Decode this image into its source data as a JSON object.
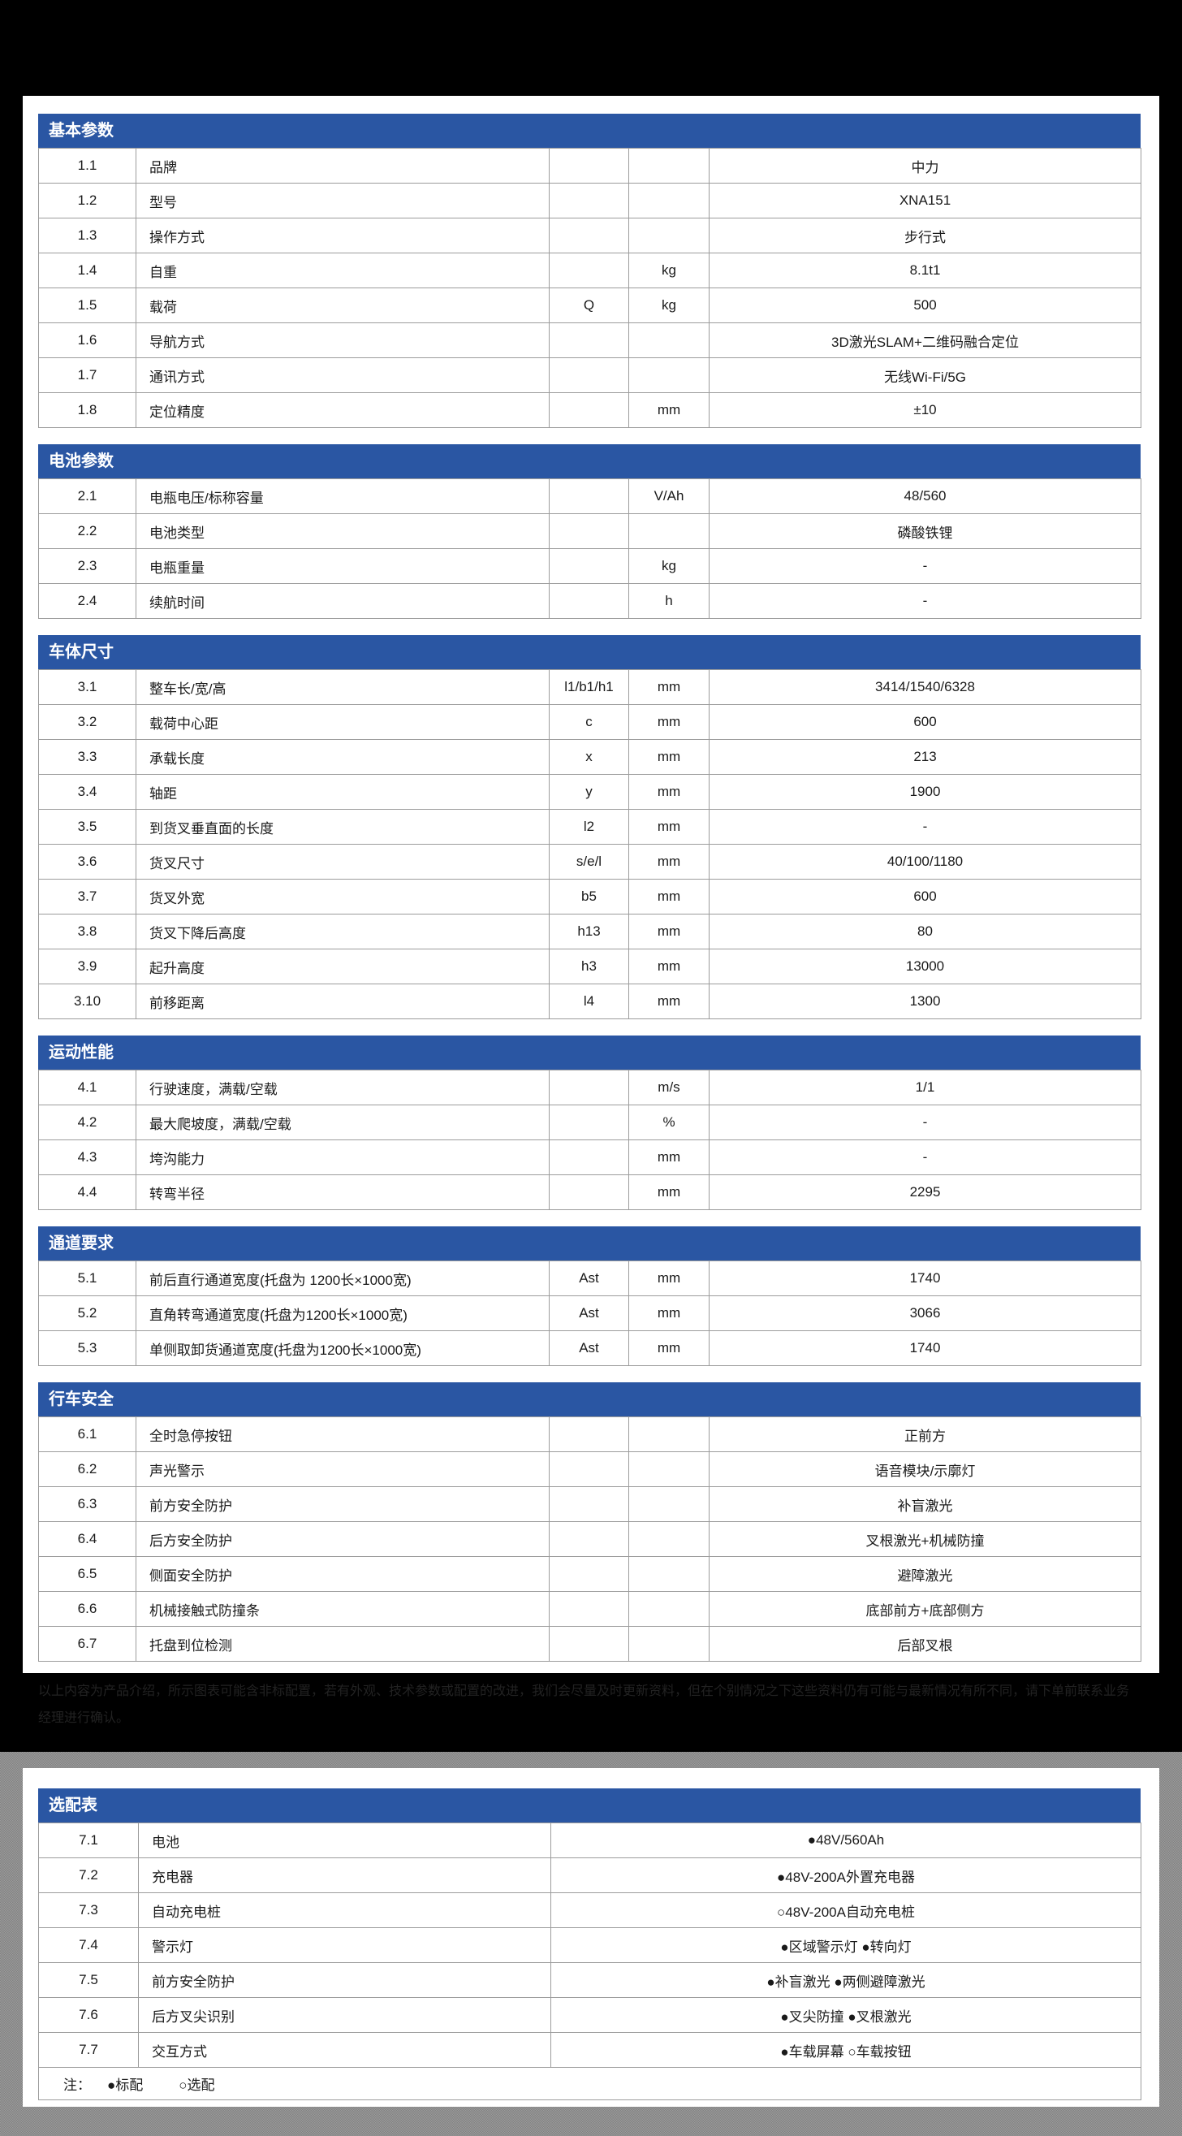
{
  "colors": {
    "header_blue": "#2A56A3",
    "border_gray": "#9C9C9C",
    "text_color": "#1A1A1A",
    "page_background": "#000000",
    "noise_gray_dark": "#828282",
    "noise_gray_light": "#9B9B9B",
    "card_white": "#FFFFFF"
  },
  "sections": [
    {
      "title": "基本参数",
      "rows": [
        {
          "no": "1.1",
          "name": "品牌",
          "symbol": "",
          "unit": "",
          "value": "中力"
        },
        {
          "no": "1.2",
          "name": "型号",
          "symbol": "",
          "unit": "",
          "value": "XNA151"
        },
        {
          "no": "1.3",
          "name": "操作方式",
          "symbol": "",
          "unit": "",
          "value": "步行式"
        },
        {
          "no": "1.4",
          "name": "自重",
          "symbol": "",
          "unit": "kg",
          "value": "8.1t1"
        },
        {
          "no": "1.5",
          "name": "载荷",
          "symbol": "Q",
          "unit": "kg",
          "value": "500"
        },
        {
          "no": "1.6",
          "name": "导航方式",
          "symbol": "",
          "unit": "",
          "value": "3D激光SLAM+二维码融合定位"
        },
        {
          "no": "1.7",
          "name": "通讯方式",
          "symbol": "",
          "unit": "",
          "value": "无线Wi-Fi/5G"
        },
        {
          "no": "1.8",
          "name": "定位精度",
          "symbol": "",
          "unit": "mm",
          "value": "±10"
        }
      ]
    },
    {
      "title": "电池参数",
      "rows": [
        {
          "no": "2.1",
          "name": "电瓶电压/标称容量",
          "symbol": "",
          "unit": "V/Ah",
          "value": "48/560"
        },
        {
          "no": "2.2",
          "name": "电池类型",
          "symbol": "",
          "unit": "",
          "value": "磷酸铁锂"
        },
        {
          "no": "2.3",
          "name": "电瓶重量",
          "symbol": "",
          "unit": "kg",
          "value": "-"
        },
        {
          "no": "2.4",
          "name": "续航时间",
          "symbol": "",
          "unit": "h",
          "value": "-"
        }
      ]
    },
    {
      "title": "车体尺寸",
      "rows": [
        {
          "no": "3.1",
          "name": "整车长/宽/高",
          "symbol": "l1/b1/h1",
          "unit": "mm",
          "value": "3414/1540/6328"
        },
        {
          "no": "3.2",
          "name": "载荷中心距",
          "symbol": "c",
          "unit": "mm",
          "value": "600"
        },
        {
          "no": "3.3",
          "name": "承载长度",
          "symbol": "x",
          "unit": "mm",
          "value": "213"
        },
        {
          "no": "3.4",
          "name": "轴距",
          "symbol": "y",
          "unit": "mm",
          "value": "1900"
        },
        {
          "no": "3.5",
          "name": "到货叉垂直面的长度",
          "symbol": "l2",
          "unit": "mm",
          "value": "-"
        },
        {
          "no": "3.6",
          "name": "货叉尺寸",
          "symbol": "s/e/l",
          "unit": "mm",
          "value": "40/100/1180"
        },
        {
          "no": "3.7",
          "name": "货叉外宽",
          "symbol": "b5",
          "unit": "mm",
          "value": "600"
        },
        {
          "no": "3.8",
          "name": "货叉下降后高度",
          "symbol": "h13",
          "unit": "mm",
          "value": "80"
        },
        {
          "no": "3.9",
          "name": "起升高度",
          "symbol": "h3",
          "unit": "mm",
          "value": "13000"
        },
        {
          "no": "3.10",
          "name": "前移距离",
          "symbol": "l4",
          "unit": "mm",
          "value": "1300"
        }
      ]
    },
    {
      "title": "运动性能",
      "rows": [
        {
          "no": "4.1",
          "name": "行驶速度，满载/空载",
          "symbol": "",
          "unit": "m/s",
          "value": "1/1"
        },
        {
          "no": "4.2",
          "name": "最大爬坡度，满载/空载",
          "symbol": "",
          "unit": "%",
          "value": "-"
        },
        {
          "no": "4.3",
          "name": "垮沟能力",
          "symbol": "",
          "unit": "mm",
          "value": "-"
        },
        {
          "no": "4.4",
          "name": "转弯半径",
          "symbol": "",
          "unit": "mm",
          "value": "2295"
        }
      ]
    },
    {
      "title": "通道要求",
      "rows": [
        {
          "no": "5.1",
          "name": "前后直行通道宽度(托盘为 1200长×1000宽)",
          "symbol": "Ast",
          "unit": "mm",
          "value": "1740"
        },
        {
          "no": "5.2",
          "name": "直角转弯通道宽度(托盘为1200长×1000宽)",
          "symbol": "Ast",
          "unit": "mm",
          "value": "3066"
        },
        {
          "no": "5.3",
          "name": "单侧取卸货通道宽度(托盘为1200长×1000宽)",
          "symbol": "Ast",
          "unit": "mm",
          "value": "1740"
        }
      ]
    },
    {
      "title": "行车安全",
      "rows": [
        {
          "no": "6.1",
          "name": "全时急停按钮",
          "symbol": "",
          "unit": "",
          "value": "正前方"
        },
        {
          "no": "6.2",
          "name": "声光警示",
          "symbol": "",
          "unit": "",
          "value": "语音模块/示廓灯"
        },
        {
          "no": "6.3",
          "name": "前方安全防护",
          "symbol": "",
          "unit": "",
          "value": "补盲激光"
        },
        {
          "no": "6.4",
          "name": "后方安全防护",
          "symbol": "",
          "unit": "",
          "value": "叉根激光+机械防撞"
        },
        {
          "no": "6.5",
          "name": "侧面安全防护",
          "symbol": "",
          "unit": "",
          "value": "避障激光"
        },
        {
          "no": "6.6",
          "name": "机械接触式防撞条",
          "symbol": "",
          "unit": "",
          "value": "底部前方+底部侧方"
        },
        {
          "no": "6.7",
          "name": "托盘到位检测",
          "symbol": "",
          "unit": "",
          "value": "后部叉根"
        }
      ]
    }
  ],
  "disclaimer": "以上内容为产品介绍，所示图表可能含非标配置，若有外观、技术参数或配置的改进，我们会尽量及时更新资料，但在个别情况之下这些资料仍有可能与最新情况有所不同，请下单前联系业务经理进行确认。",
  "options_table": {
    "title": "选配表",
    "rows": [
      {
        "no": "7.1",
        "name": "电池",
        "value": "●48V/560Ah"
      },
      {
        "no": "7.2",
        "name": "充电器",
        "value": "●48V-200A外置充电器"
      },
      {
        "no": "7.3",
        "name": "自动充电桩",
        "value": "○48V-200A自动充电桩"
      },
      {
        "no": "7.4",
        "name": "警示灯",
        "value": "●区域警示灯 ●转向灯"
      },
      {
        "no": "7.5",
        "name": "前方安全防护",
        "value": "●补盲激光 ●两侧避障激光"
      },
      {
        "no": "7.6",
        "name": "后方叉尖识别",
        "value": "●叉尖防撞 ●叉根激光"
      },
      {
        "no": "7.7",
        "name": "交互方式",
        "value": "●车载屏幕 ○车载按钮"
      }
    ],
    "note": {
      "label": "注：",
      "standard": "●标配",
      "optional": "○选配"
    }
  }
}
